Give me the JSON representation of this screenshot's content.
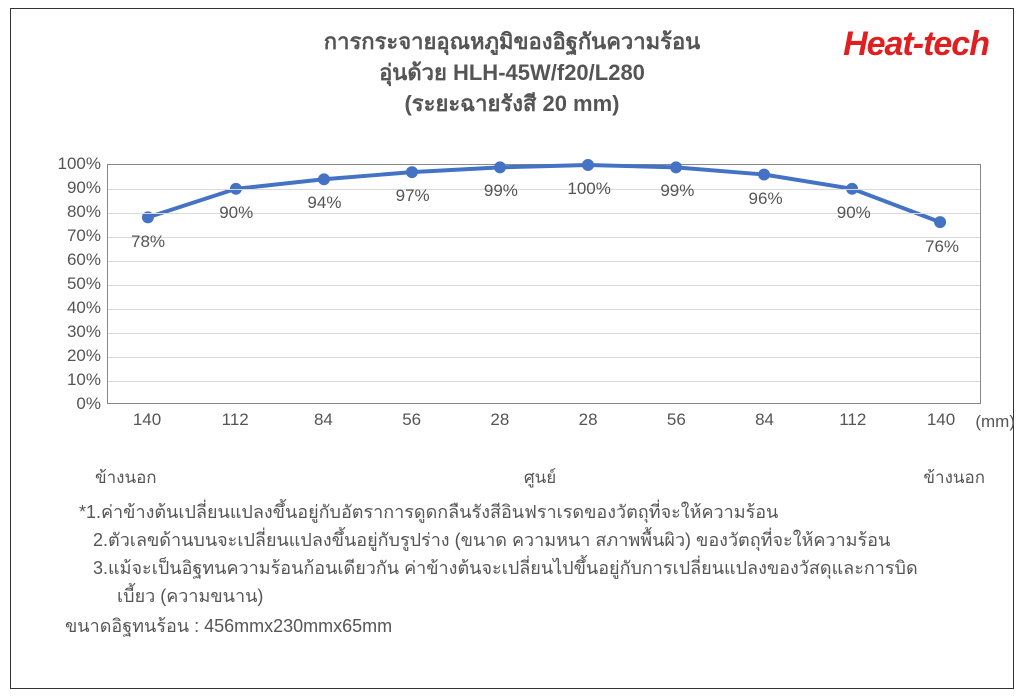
{
  "title": {
    "line1": "การกระจายอุณหภูมิของอิฐกันความร้อน",
    "line2": "อุ่นด้วย HLH-45W/f20/L280",
    "line3": "(ระยะฉายรังสี 20 mm)",
    "fontsize": 22,
    "color": "#555555"
  },
  "brand": {
    "text": "Heat-tech",
    "color": "#e02020",
    "fontsize": 34
  },
  "chart": {
    "type": "line",
    "categories": [
      "140",
      "112",
      "84",
      "56",
      "28",
      "28",
      "56",
      "84",
      "112",
      "140"
    ],
    "values_percent": [
      78,
      90,
      94,
      97,
      99,
      100,
      99,
      96,
      90,
      76
    ],
    "data_labels": [
      "78%",
      "90%",
      "94%",
      "97%",
      "99%",
      "100%",
      "99%",
      "96%",
      "90%",
      "76%"
    ],
    "x_unit": "(mm)",
    "x_sub_left": "ข้างนอก",
    "x_sub_center": "ศูนย์",
    "x_sub_right": "ข้างนอก",
    "ylim": [
      0,
      100
    ],
    "ytick_step": 10,
    "y_ticks": [
      "0%",
      "10%",
      "20%",
      "30%",
      "40%",
      "50%",
      "60%",
      "70%",
      "80%",
      "90%",
      "100%"
    ],
    "line_color": "#4472c4",
    "line_width": 4,
    "marker_color": "#4472c4",
    "marker_radius": 6,
    "grid_color": "#d9d9d9",
    "axis_color": "#888888",
    "background_color": "#ffffff",
    "label_fontsize": 17,
    "label_color": "#555555"
  },
  "notes": {
    "line1": "*1.ค่าข้างต้นเปลี่ยนแปลงขึ้นอยู่กับอัตราการดูดกลืนรังสีอินฟราเรดของวัตถุที่จะให้ความร้อน",
    "line2": "2.ตัวเลขด้านบนจะเปลี่ยนแปลงขึ้นอยู่กับรูปร่าง (ขนาด ความหนา สภาพพื้นผิว) ของวัตถุที่จะให้ความร้อน",
    "line3a": "3.แม้จะเป็นอิฐทนความร้อนก้อนเดียวกัน ค่าข้างต้นจะเปลี่ยนไปขึ้นอยู่กับการเปลี่ยนแปลงของวัสดุและการบิด",
    "line3b": "เบี้ยว (ความขนาน)",
    "size_label": "ขนาดอิฐทนร้อน : 456mmx230mmx65mm",
    "fontsize": 18,
    "color": "#555555"
  }
}
